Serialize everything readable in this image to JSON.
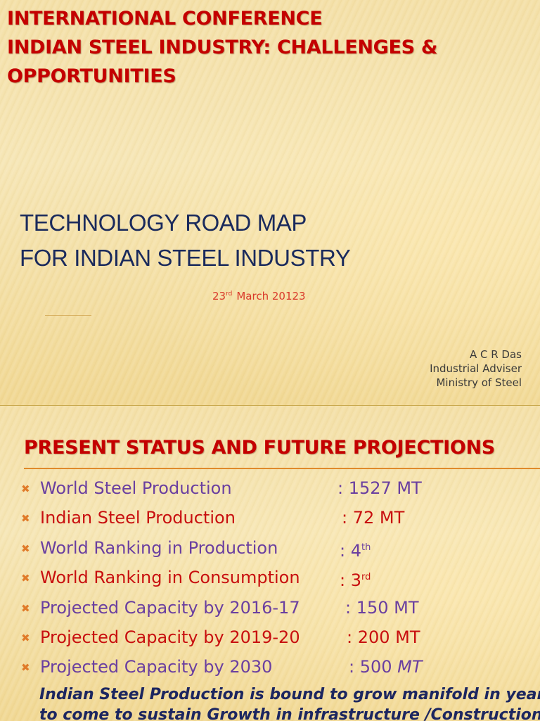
{
  "slide1": {
    "header": {
      "line1": "INTERNATIONAL CONFERENCE",
      "line2": "INDIAN STEEL INDUSTRY: CHALLENGES &",
      "line3": "OPPORTUNITIES"
    },
    "title": {
      "line1": "TECHNOLOGY ROAD MAP",
      "line2": "FOR INDIAN STEEL INDUSTRY"
    },
    "date": {
      "day": "23",
      "suffix": "rd",
      "rest": "March 20123"
    },
    "author": {
      "name": "A C R Das",
      "role": "Industrial Adviser",
      "org": "Ministry of Steel"
    }
  },
  "slide2": {
    "title": "PRESENT STATUS AND FUTURE PROJECTIONS",
    "bullet_symbol": "✖",
    "bullets": [
      {
        "label": "World Steel Production",
        "value": ": 1527 MT",
        "sup": ""
      },
      {
        "label": "Indian Steel Production",
        "value": ": 72 MT",
        "sup": ""
      },
      {
        "label": "World Ranking in Production",
        "value": ": 4",
        "sup": "th"
      },
      {
        "label": "World Ranking in Consumption",
        "value": ": 3",
        "sup": "rd"
      },
      {
        "label": "Projected Capacity by 2016-17",
        "value": ": 150 MT",
        "sup": ""
      },
      {
        "label": "Projected Capacity by 2019-20",
        "value": ": 200 MT",
        "sup": ""
      },
      {
        "label": "Projected Capacity by 2030",
        "value": ": 500 ",
        "value_italic": "MT",
        "sup": ""
      }
    ],
    "note": {
      "line1": "Indian Steel Production is bound to grow manifold in years",
      "line2": "to come to sustain Growth in infrastructure /Construction"
    }
  },
  "colors": {
    "header_red": "#c40000",
    "title_navy": "#1a2a5c",
    "date_red": "#d9392a",
    "bullet_purple": "#6a3fa0",
    "bullet_red": "#c80f0f",
    "bullet_mark_orange": "#e07b2a",
    "rule_orange": "#e08a2a",
    "note_navy": "#1c2660"
  }
}
